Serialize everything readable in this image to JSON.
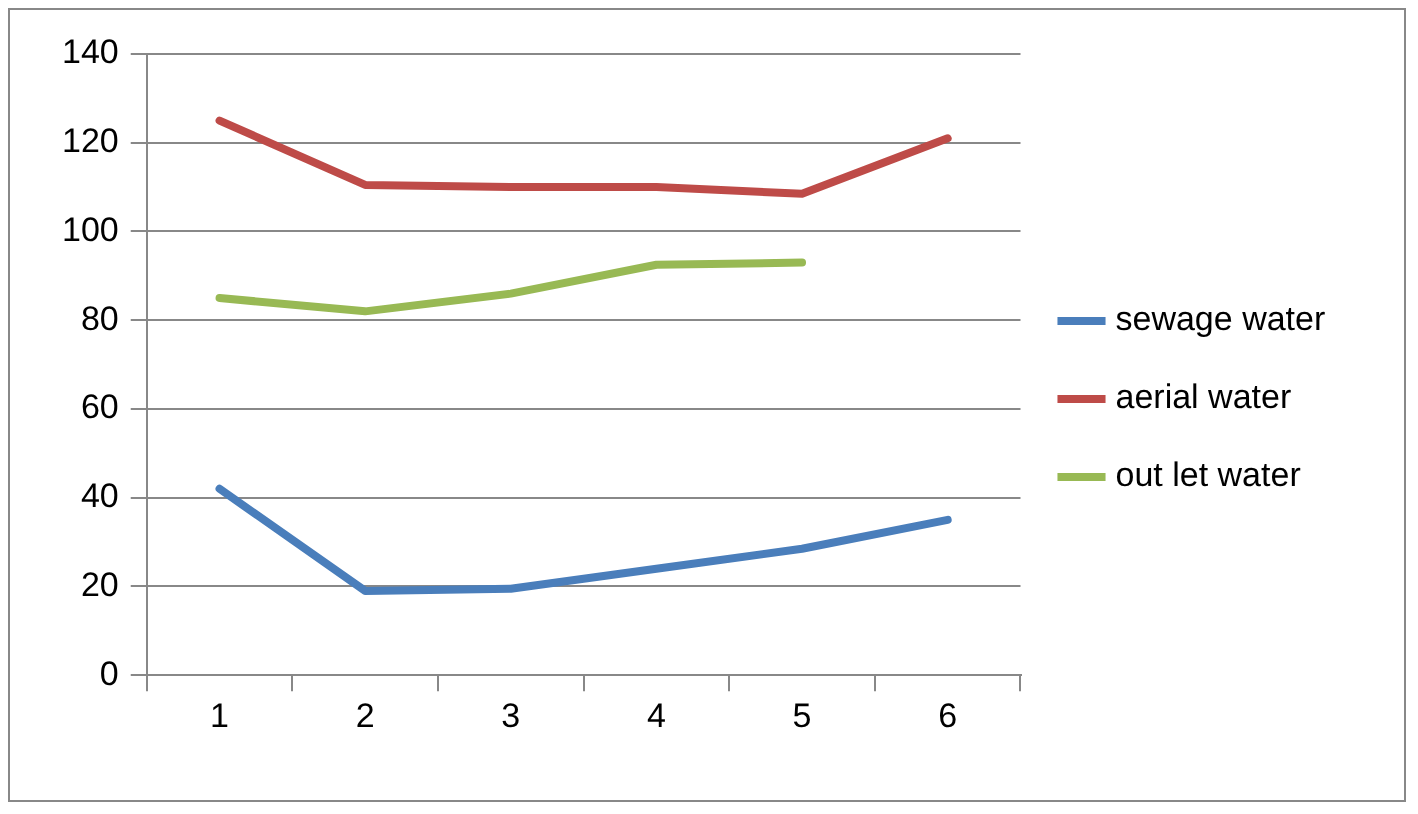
{
  "chart_data": {
    "type": "line",
    "categories": [
      "1",
      "2",
      "3",
      "4",
      "5",
      "6"
    ],
    "series": [
      {
        "name": "sewage water",
        "color": "#4a7ebb",
        "values": [
          42,
          19,
          19.5,
          24,
          28.5,
          35
        ]
      },
      {
        "name": "aerial water",
        "color": "#be4b48",
        "values": [
          125,
          110.5,
          110,
          110,
          108.5,
          121
        ]
      },
      {
        "name": "out let water",
        "color": "#98b954",
        "values": [
          85,
          82,
          86,
          92.5,
          93,
          null
        ]
      }
    ],
    "ylim": [
      0,
      140
    ],
    "yticks": [
      0,
      20,
      40,
      60,
      80,
      100,
      120,
      140
    ],
    "grid": "y",
    "legend": "right",
    "marker": "none",
    "line_style": "solid"
  }
}
